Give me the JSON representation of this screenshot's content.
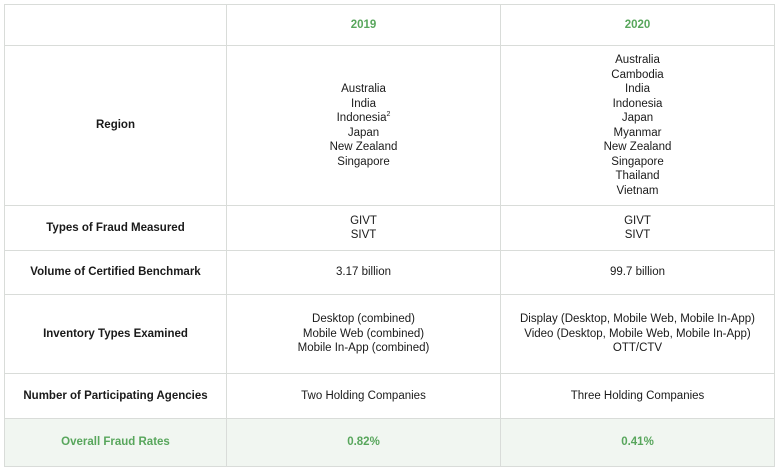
{
  "header": {
    "year_a": "2019",
    "year_b": "2020"
  },
  "rows": {
    "region": {
      "label": "Region",
      "y2019": [
        "Australia",
        "India",
        "Indonesia",
        "Japan",
        "New Zealand",
        "Singapore"
      ],
      "y2019_footnote": "2",
      "y2020": [
        "Australia",
        "Cambodia",
        "India",
        "Indonesia",
        "Japan",
        "Myanmar",
        "New Zealand",
        "Singapore",
        "Thailand",
        "Vietnam"
      ]
    },
    "types": {
      "label": "Types of Fraud Measured",
      "y2019": [
        "GIVT",
        "SIVT"
      ],
      "y2020": [
        "GIVT",
        "SIVT"
      ]
    },
    "volume": {
      "label": "Volume of Certified Benchmark",
      "y2019": "3.17 billion",
      "y2020": "99.7 billion"
    },
    "inventory": {
      "label": "Inventory Types Examined",
      "y2019": [
        "Desktop (combined)",
        "Mobile Web (combined)",
        "Mobile In-App (combined)"
      ],
      "y2020": [
        "Display (Desktop, Mobile Web, Mobile In-App)",
        "Video (Desktop, Mobile Web, Mobile In-App)",
        "OTT/CTV"
      ]
    },
    "agencies": {
      "label": "Number of Participating Agencies",
      "y2019": "Two Holding Companies",
      "y2020": "Three Holding Companies"
    },
    "fraud": {
      "label": "Overall Fraud Rates",
      "y2019": "0.82%",
      "y2020": "0.41%"
    }
  },
  "colors": {
    "accent_green": "#58a65c",
    "highlight_row_bg": "#f1f6f1",
    "grid_line": "#d9dcd9"
  }
}
